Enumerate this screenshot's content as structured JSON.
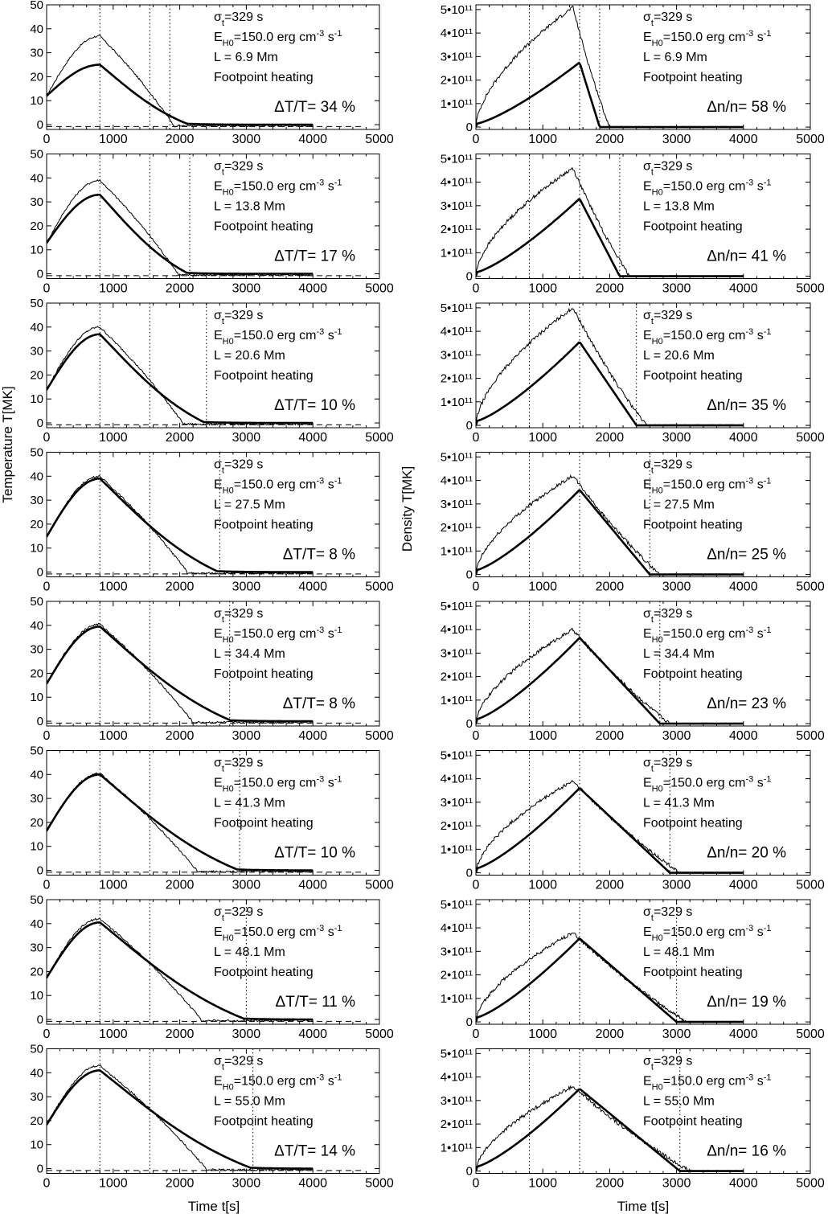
{
  "figure": {
    "left_ylabel": "Temperature T[MK]",
    "right_ylabel": "Density T[MK]",
    "xlabel": "Time t[s]",
    "sigma_text": "σt=329 s",
    "heating_text": "Footpoint heating",
    "energy_value": "150.0"
  },
  "chart_data": {
    "type": "line",
    "x_ticks": [
      0,
      1000,
      2000,
      3000,
      4000,
      5000
    ],
    "xlim": [
      0,
      5000
    ],
    "temperature": {
      "ylim": [
        -2,
        50
      ],
      "y_ticks": [
        0,
        10,
        20,
        30,
        40,
        50
      ],
      "y_tick_labels": [
        "0",
        "10",
        "20",
        "30",
        "40",
        "50"
      ]
    },
    "density": {
      "ylim": [
        -0.1,
        5.2
      ],
      "y_ticks": [
        0,
        1,
        2,
        3,
        4,
        5
      ],
      "y_tick_labels": [
        "0",
        "1•10¹¹",
        "2•10¹¹",
        "3•10¹¹",
        "4•10¹¹",
        "5•10¹¹"
      ]
    },
    "panels": [
      {
        "L": "L =   6.9 Mm",
        "dT": "ΔT/T= 34 %",
        "dn": "Δn/n= 58 %",
        "T_peak": 25,
        "T_obs_peak": 37,
        "T_end": 2100,
        "T_vlines": [
          800,
          1550,
          1850
        ],
        "n_peak": 2.75,
        "n_obs_peak": 5.1,
        "n_end": 1850,
        "n_vlines": [
          800,
          1550,
          1850
        ]
      },
      {
        "L": "L =  13.8 Mm",
        "dT": "ΔT/T= 17 %",
        "dn": "Δn/n= 41 %",
        "T_peak": 33,
        "T_obs_peak": 39,
        "T_end": 2100,
        "T_vlines": [
          800,
          1550,
          2150
        ],
        "n_peak": 3.3,
        "n_obs_peak": 4.6,
        "n_end": 2150,
        "n_vlines": [
          800,
          1550,
          2150
        ]
      },
      {
        "L": "L =  20.6 Mm",
        "dT": "ΔT/T= 10 %",
        "dn": "Δn/n= 35 %",
        "T_peak": 37,
        "T_obs_peak": 40,
        "T_end": 2350,
        "T_vlines": [
          800,
          1550,
          2400
        ],
        "n_peak": 3.55,
        "n_obs_peak": 5.0,
        "n_end": 2400,
        "n_vlines": [
          800,
          1550,
          2400
        ]
      },
      {
        "L": "L =  27.5 Mm",
        "dT": "ΔT/T=  8 %",
        "dn": "Δn/n= 25 %",
        "T_peak": 39,
        "T_obs_peak": 40,
        "T_end": 2550,
        "T_vlines": [
          800,
          1550,
          2600
        ],
        "n_peak": 3.6,
        "n_obs_peak": 4.2,
        "n_end": 2600,
        "n_vlines": [
          800,
          1550,
          2600
        ]
      },
      {
        "L": "L =  34.4 Mm",
        "dT": "ΔT/T=  8 %",
        "dn": "Δn/n= 23 %",
        "T_peak": 39.5,
        "T_obs_peak": 40.5,
        "T_end": 2750,
        "T_vlines": [
          800,
          1550,
          2750
        ],
        "n_peak": 3.65,
        "n_obs_peak": 4.0,
        "n_end": 2750,
        "n_vlines": [
          800,
          1550,
          2750
        ]
      },
      {
        "L": "L =  41.3 Mm",
        "dT": "ΔT/T= 10 %",
        "dn": "Δn/n= 20 %",
        "T_peak": 40,
        "T_obs_peak": 40.5,
        "T_end": 2850,
        "T_vlines": [
          800,
          1550,
          2900
        ],
        "n_peak": 3.6,
        "n_obs_peak": 3.9,
        "n_end": 2900,
        "n_vlines": [
          800,
          1550,
          2900
        ]
      },
      {
        "L": "L =  48.1 Mm",
        "dT": "ΔT/T= 11 %",
        "dn": "Δn/n= 19 %",
        "T_peak": 40.5,
        "T_obs_peak": 42,
        "T_end": 2950,
        "T_vlines": [
          800,
          1550,
          3000
        ],
        "n_peak": 3.55,
        "n_obs_peak": 3.8,
        "n_end": 3000,
        "n_vlines": [
          800,
          1550,
          3000
        ]
      },
      {
        "L": "L =  55.0 Mm",
        "dT": "ΔT/T= 14 %",
        "dn": "Δn/n= 16 %",
        "T_peak": 41,
        "T_obs_peak": 43,
        "T_end": 3050,
        "T_vlines": [
          800,
          1550,
          3100
        ],
        "n_peak": 3.5,
        "n_obs_peak": 3.6,
        "n_end": 3050,
        "n_vlines": [
          800,
          1550,
          3050
        ]
      }
    ]
  }
}
